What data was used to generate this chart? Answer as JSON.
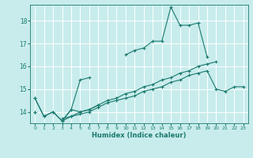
{
  "xlabel": "Humidex (Indice chaleur)",
  "background_color": "#c8ecec",
  "grid_color": "#ffffff",
  "line_color": "#1a7a6e",
  "xlim": [
    -0.5,
    23.5
  ],
  "ylim": [
    13.5,
    18.7
  ],
  "yticks": [
    14,
    15,
    16,
    17,
    18
  ],
  "xticks": [
    0,
    1,
    2,
    3,
    4,
    5,
    6,
    7,
    8,
    9,
    10,
    11,
    12,
    13,
    14,
    15,
    16,
    17,
    18,
    19,
    20,
    21,
    22,
    23
  ],
  "series": [
    {
      "x": [
        0,
        1,
        2,
        3,
        4,
        5,
        6,
        7,
        8,
        9,
        10,
        11,
        12,
        13,
        14,
        15,
        16,
        17,
        18,
        19,
        20,
        21,
        22,
        23
      ],
      "y": [
        14.6,
        13.8,
        14.0,
        13.6,
        14.1,
        14.0,
        14.1,
        14.3,
        null,
        null,
        16.5,
        16.7,
        16.8,
        17.1,
        17.1,
        18.6,
        17.8,
        17.8,
        17.9,
        16.4,
        null,
        null,
        null,
        null
      ]
    },
    {
      "x": [
        0,
        1,
        2,
        3,
        4,
        5,
        6,
        7,
        8,
        9,
        10,
        11,
        12,
        13,
        14,
        15,
        16,
        17,
        18,
        19,
        20,
        21,
        22,
        23
      ],
      "y": [
        14.6,
        13.8,
        14.0,
        13.6,
        14.1,
        15.4,
        15.5,
        null,
        null,
        null,
        null,
        null,
        null,
        null,
        null,
        null,
        null,
        null,
        null,
        null,
        null,
        null,
        null,
        null
      ]
    },
    {
      "x": [
        0,
        1,
        2,
        3,
        4,
        5,
        6,
        7,
        8,
        9,
        10,
        11,
        12,
        13,
        14,
        15,
        16,
        17,
        18,
        19,
        20,
        21,
        22,
        23
      ],
      "y": [
        14.0,
        null,
        null,
        13.6,
        13.8,
        13.9,
        14.0,
        14.2,
        14.4,
        14.5,
        14.6,
        14.7,
        14.9,
        15.0,
        15.1,
        15.3,
        15.4,
        15.6,
        15.7,
        15.8,
        15.0,
        14.9,
        15.1,
        15.1
      ]
    },
    {
      "x": [
        0,
        1,
        2,
        3,
        4,
        5,
        6,
        7,
        8,
        9,
        10,
        11,
        12,
        13,
        14,
        15,
        16,
        17,
        18,
        19,
        20,
        21,
        22,
        23
      ],
      "y": [
        14.0,
        null,
        null,
        13.7,
        13.8,
        14.0,
        14.1,
        14.3,
        14.5,
        14.6,
        14.8,
        14.9,
        15.1,
        15.2,
        15.4,
        15.5,
        15.7,
        15.8,
        16.0,
        16.1,
        16.2,
        null,
        null,
        null
      ]
    }
  ]
}
